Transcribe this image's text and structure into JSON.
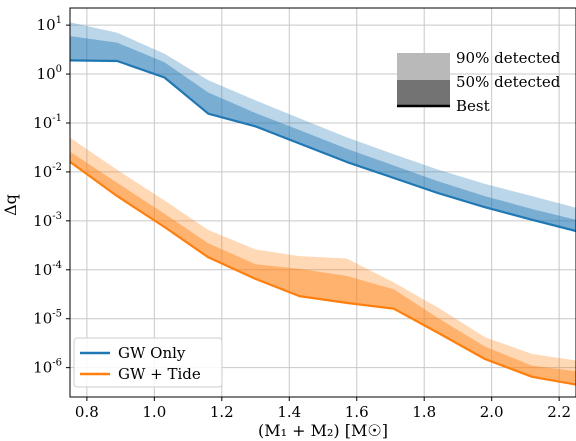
{
  "chart_data": {
    "type": "area",
    "xlabel": "(M₁ + M₂) [M☉]",
    "ylabel": "Δq",
    "xlim": [
      0.75,
      2.25
    ],
    "ylim_log10": [
      -6.6,
      1.35
    ],
    "yscale": "log",
    "grid": true,
    "x_ticks": [
      0.8,
      1.0,
      1.2,
      1.4,
      1.6,
      1.8,
      2.0,
      2.2
    ],
    "x_tick_labels": [
      "0.8",
      "1.0",
      "1.2",
      "1.4",
      "1.6",
      "1.8",
      "2.0",
      "2.2"
    ],
    "y_ticks": [
      1,
      0,
      -1,
      -2,
      -3,
      -4,
      -5,
      -6
    ],
    "y_tick_labels": [
      {
        "base": "10",
        "exp": "1"
      },
      {
        "base": "10",
        "exp": "0"
      },
      {
        "base": "10",
        "exp": "-1"
      },
      {
        "base": "10",
        "exp": "-2"
      },
      {
        "base": "10",
        "exp": "-3"
      },
      {
        "base": "10",
        "exp": "-4"
      },
      {
        "base": "10",
        "exp": "-5"
      },
      {
        "base": "10",
        "exp": "-6"
      }
    ],
    "x": [
      0.75,
      0.89,
      1.03,
      1.16,
      1.3,
      1.43,
      1.57,
      1.71,
      1.84,
      1.98,
      2.12,
      2.25
    ],
    "series": [
      {
        "name": "GW Only",
        "color": "#1f77b4",
        "best": [
          1.9,
          1.85,
          0.85,
          0.155,
          0.085,
          0.038,
          0.016,
          0.0075,
          0.0037,
          0.0019,
          0.00105,
          0.00062
        ],
        "p50": [
          6.0,
          4.4,
          1.75,
          0.42,
          0.16,
          0.072,
          0.03,
          0.0135,
          0.0065,
          0.0032,
          0.00175,
          0.00105
        ],
        "p90": [
          11.5,
          7.0,
          2.6,
          0.75,
          0.29,
          0.125,
          0.051,
          0.023,
          0.0112,
          0.0057,
          0.0032,
          0.00185
        ]
      },
      {
        "name": "GW + Tide",
        "color": "#ff7f0e",
        "best": [
          0.016,
          0.0032,
          0.00075,
          0.00018,
          6.5e-05,
          2.9e-05,
          2.1e-05,
          1.6e-05,
          5.2e-06,
          1.5e-06,
          6.5e-07,
          4.5e-07
        ],
        "p50": [
          0.026,
          0.006,
          0.0014,
          0.00035,
          0.00013,
          0.000105,
          7.5e-05,
          4e-05,
          1.05e-05,
          2.7e-06,
          1.1e-06,
          8.5e-07
        ],
        "p90": [
          0.05,
          0.011,
          0.0026,
          0.00065,
          0.00026,
          0.00019,
          0.00017,
          5.5e-05,
          1.7e-05,
          4.2e-06,
          1.9e-06,
          1.4e-06
        ]
      }
    ],
    "band_legend": {
      "entries": [
        "90% detected",
        "50% detected",
        "Best"
      ],
      "placement": "top-right"
    },
    "legend": {
      "entries": [
        "GW Only",
        "GW + Tide"
      ],
      "placement": "lower-left"
    }
  }
}
